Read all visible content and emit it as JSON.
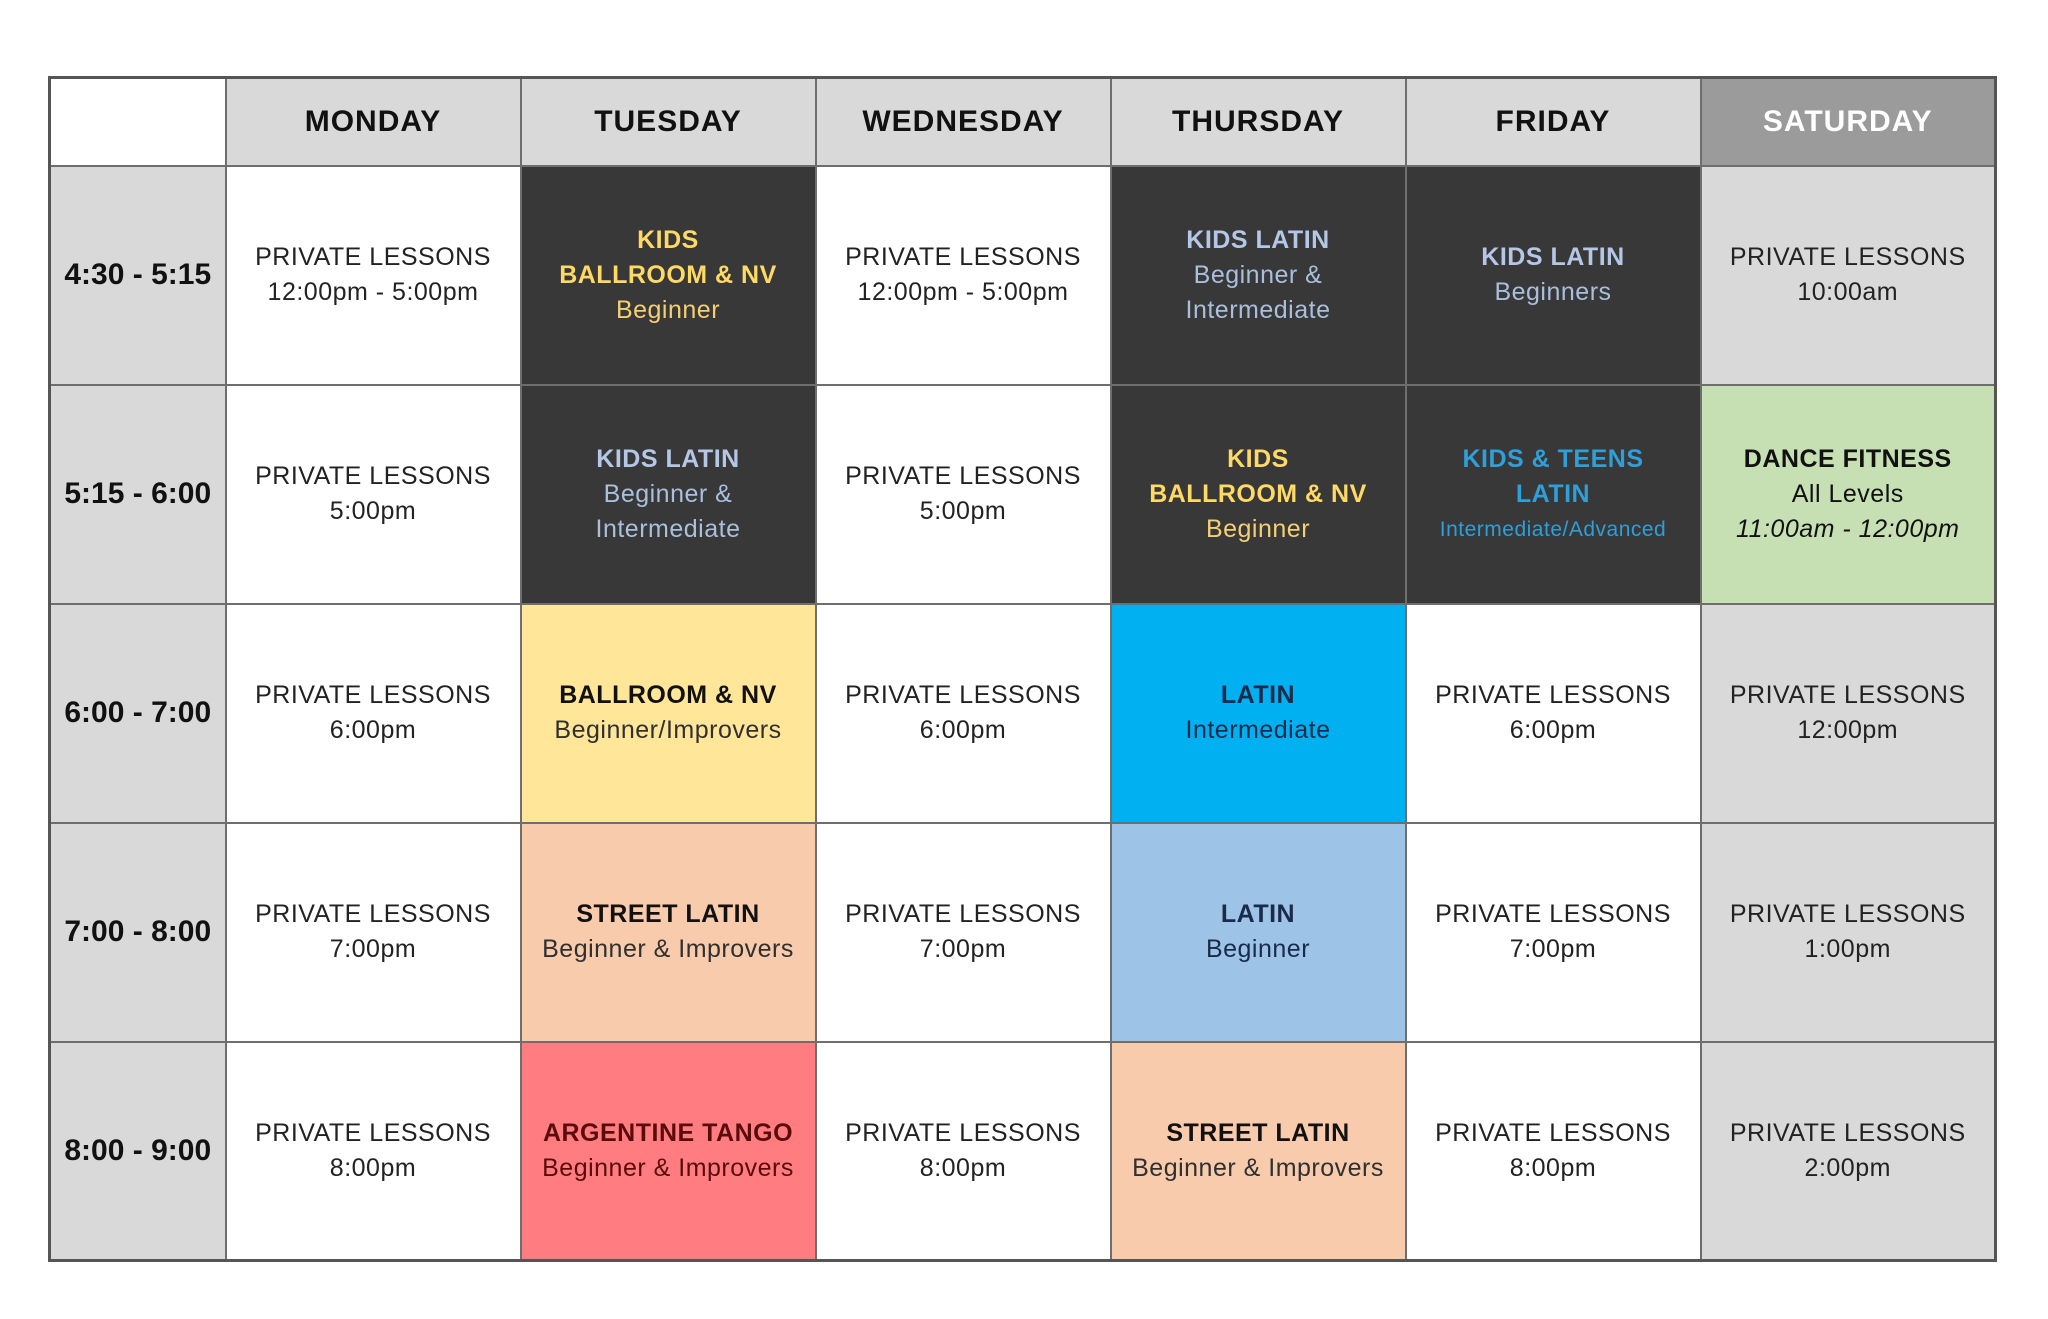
{
  "days": [
    "MONDAY",
    "TUESDAY",
    "WEDNESDAY",
    "THURSDAY",
    "FRIDAY",
    "SATURDAY"
  ],
  "times": [
    "4:30 - 5:15",
    "5:15 - 6:00",
    "6:00 - 7:00",
    "7:00 - 8:00",
    "8:00 - 9:00"
  ],
  "colors": {
    "header_grey": "#d9d9d9",
    "saturday_header": "#9b9b9b",
    "dark_cell": "#383838",
    "dance_fitness_green": "#c6e0b4",
    "ballroom_yellow": "#ffe699",
    "street_latin_peach": "#f8cbad",
    "argentine_tango_red": "#ff7c80",
    "latin_intermediate_blue": "#00b0f0",
    "latin_beginner_blue": "#9dc3e6",
    "gold_text": "#ffd966",
    "pale_blue_text": "#b4c7e7",
    "cyan_text": "#2e9fd8"
  },
  "schedule": {
    "r0": {
      "monday": {
        "l1": "PRIVATE LESSONS",
        "l2": "12:00pm - 5:00pm"
      },
      "tuesday": {
        "l1": "KIDS",
        "l2": "BALLROOM & NV",
        "l3": "Beginner"
      },
      "wednesday": {
        "l1": "PRIVATE LESSONS",
        "l2": "12:00pm - 5:00pm"
      },
      "thursday": {
        "l1": "KIDS LATIN",
        "l2": "Beginner &",
        "l3": "Intermediate"
      },
      "friday": {
        "l1": "KIDS LATIN",
        "l2": "Beginners"
      },
      "saturday": {
        "l1": "PRIVATE LESSONS",
        "l2": "10:00am"
      }
    },
    "r1": {
      "monday": {
        "l1": "PRIVATE LESSONS",
        "l2": "5:00pm"
      },
      "tuesday": {
        "l1": "KIDS LATIN",
        "l2": "Beginner &",
        "l3": "Intermediate"
      },
      "wednesday": {
        "l1": "PRIVATE LESSONS",
        "l2": "5:00pm"
      },
      "thursday": {
        "l1": "KIDS",
        "l2": "BALLROOM & NV",
        "l3": "Beginner"
      },
      "friday": {
        "l1": "KIDS & TEENS",
        "l2": "LATIN",
        "l3": "Intermediate/Advanced"
      },
      "saturday": {
        "l1": "DANCE FITNESS",
        "l2": "All Levels",
        "l3": "11:00am - 12:00pm"
      }
    },
    "r2": {
      "monday": {
        "l1": "PRIVATE LESSONS",
        "l2": "6:00pm"
      },
      "tuesday": {
        "l1": "BALLROOM & NV",
        "l2": "Beginner/Improvers"
      },
      "wednesday": {
        "l1": "PRIVATE LESSONS",
        "l2": "6:00pm"
      },
      "thursday": {
        "l1": "LATIN",
        "l2": "Intermediate"
      },
      "friday": {
        "l1": "PRIVATE LESSONS",
        "l2": "6:00pm"
      },
      "saturday": {
        "l1": "PRIVATE LESSONS",
        "l2": "12:00pm"
      }
    },
    "r3": {
      "monday": {
        "l1": "PRIVATE LESSONS",
        "l2": "7:00pm"
      },
      "tuesday": {
        "l1": "STREET LATIN",
        "l2": "Beginner & Improvers"
      },
      "wednesday": {
        "l1": "PRIVATE LESSONS",
        "l2": "7:00pm"
      },
      "thursday": {
        "l1": "LATIN",
        "l2": "Beginner"
      },
      "friday": {
        "l1": "PRIVATE LESSONS",
        "l2": "7:00pm"
      },
      "saturday": {
        "l1": "PRIVATE LESSONS",
        "l2": "1:00pm"
      }
    },
    "r4": {
      "monday": {
        "l1": "PRIVATE LESSONS",
        "l2": "8:00pm"
      },
      "tuesday": {
        "l1": "ARGENTINE TANGO",
        "l2": "Beginner & Improvers"
      },
      "wednesday": {
        "l1": "PRIVATE LESSONS",
        "l2": "8:00pm"
      },
      "thursday": {
        "l1": "STREET LATIN",
        "l2": "Beginner & Improvers"
      },
      "friday": {
        "l1": "PRIVATE LESSONS",
        "l2": "8:00pm"
      },
      "saturday": {
        "l1": "PRIVATE LESSONS",
        "l2": "2:00pm"
      }
    }
  }
}
